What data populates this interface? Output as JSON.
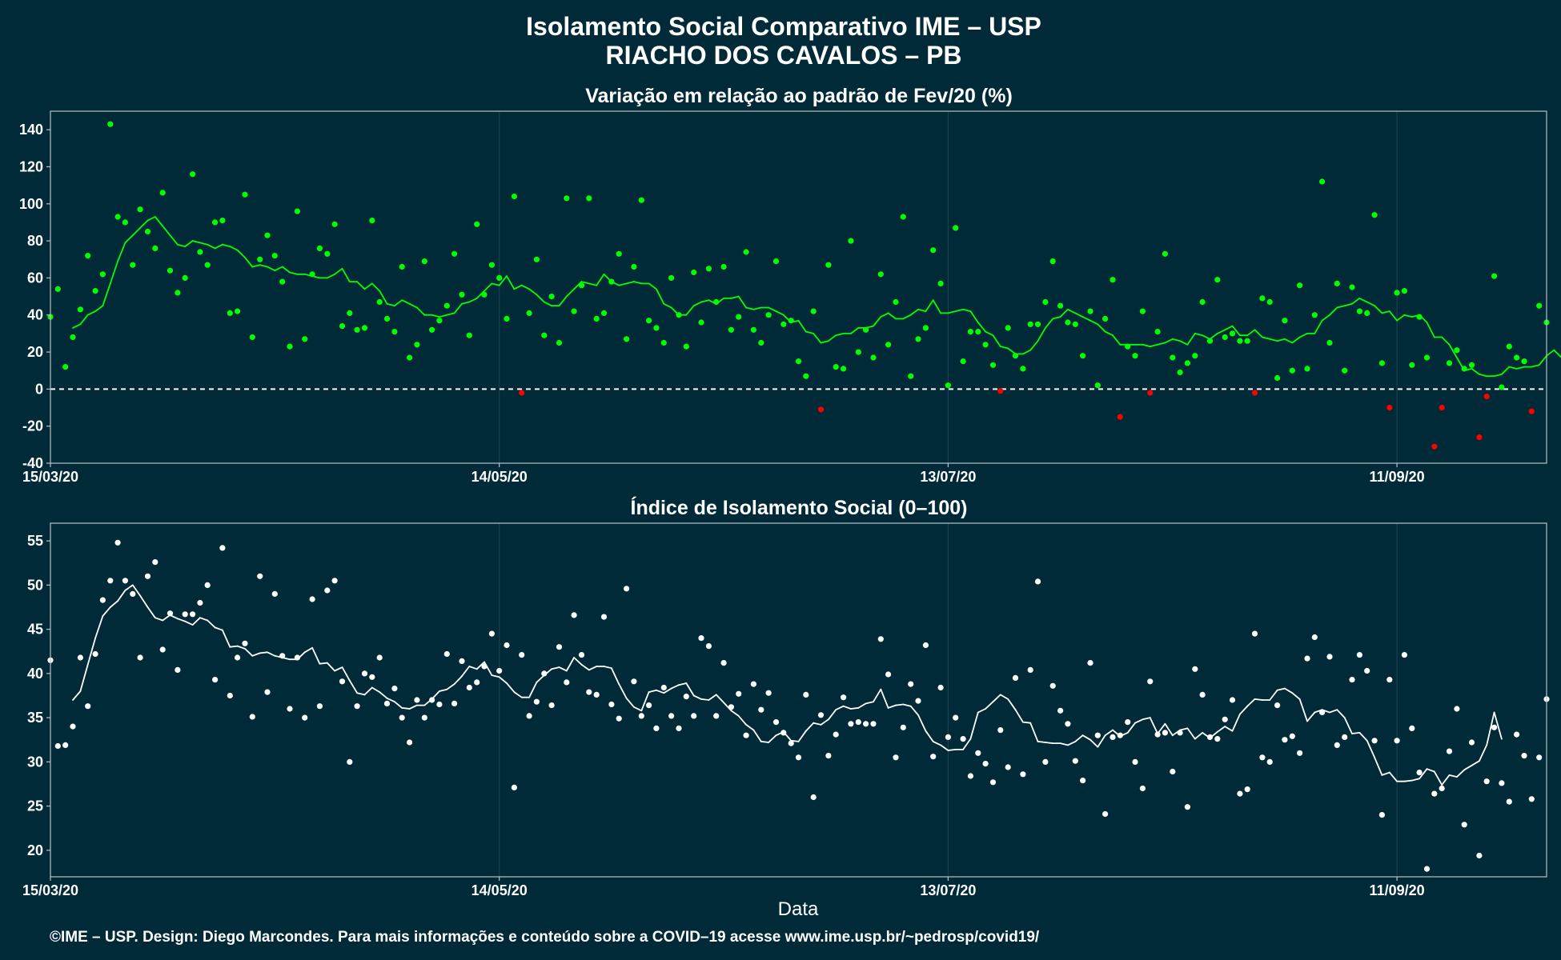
{
  "title": "Isolamento Social Comparativo IME – USP",
  "subtitle": "RIACHO DOS CAVALOS – PB",
  "footer": "©IME – USP. Design: Diego Marcondes. Para mais informações e conteúdo sobre a COVID–19 acesse www.ime.usp.br/~pedrosp/covid19/",
  "colors": {
    "background": "#002a38",
    "positive": "#00ff00",
    "negative": "#ff0000",
    "index": "#ffffff"
  },
  "chart_data": [
    {
      "type": "scatter",
      "title": "Variação em relação ao padrão de Fev/20 (%)",
      "xlabel": "",
      "x_range": [
        "2020-03-15",
        "2020-10-01"
      ],
      "xticks": [
        "15/03/20",
        "14/05/20",
        "13/07/20",
        "11/09/20"
      ],
      "ylim": [
        -40,
        150
      ],
      "yticks": [
        -40,
        -20,
        0,
        20,
        40,
        60,
        80,
        100,
        120,
        140
      ],
      "reference_line": 0,
      "grid": "vertical",
      "series": [
        {
          "kind": "points",
          "start": "2020-03-15",
          "values": [
            39,
            54,
            12,
            28,
            43,
            72,
            53,
            62,
            143,
            93,
            90,
            67,
            97,
            85,
            76,
            106,
            64,
            52,
            60,
            116,
            74,
            67,
            90,
            91,
            41,
            42,
            105,
            28,
            70,
            83,
            72,
            58,
            23,
            96,
            27,
            62,
            76,
            73,
            89,
            34,
            41,
            32,
            33,
            91,
            47,
            38,
            31,
            66,
            17,
            24,
            69,
            32,
            37,
            45,
            73,
            51,
            29,
            89,
            51,
            67,
            60,
            38,
            104,
            -2,
            41,
            70,
            29,
            50,
            25,
            103,
            42,
            56,
            103,
            38,
            41,
            58,
            73,
            27,
            66,
            102,
            37,
            33,
            25,
            60,
            40,
            23,
            63,
            36,
            65,
            47,
            66,
            32,
            39,
            74,
            32,
            25,
            40,
            69,
            35,
            37,
            15,
            7,
            42,
            -11,
            67,
            12,
            11,
            80,
            20,
            32,
            17,
            62,
            24,
            47,
            93,
            7,
            27,
            33,
            75,
            57,
            2,
            87,
            15,
            31,
            31,
            24,
            13,
            -1,
            33,
            18,
            11,
            35,
            35,
            47,
            69,
            45,
            36,
            35,
            18,
            42,
            2,
            38,
            59,
            -15,
            23,
            18,
            42,
            -2,
            31,
            73,
            17,
            9,
            14,
            18,
            47,
            26,
            59,
            28,
            30,
            26,
            26,
            -2,
            49,
            47,
            6,
            37,
            10,
            56,
            11,
            40,
            112,
            25,
            57,
            10,
            55,
            42,
            41,
            94,
            14,
            -10,
            52,
            53,
            13,
            39,
            17,
            -31,
            -10,
            14,
            21,
            11,
            13,
            -26,
            -4,
            61,
            1,
            23,
            17,
            15,
            -12,
            45,
            36
          ]
        },
        {
          "kind": "rolling-mean",
          "start": "2020-03-18",
          "values": [
            33,
            35,
            40,
            42,
            45,
            57,
            69,
            79,
            83,
            87,
            91,
            93,
            88,
            83,
            78,
            77,
            80,
            79,
            78,
            76,
            78,
            77,
            75,
            71,
            66,
            67,
            66,
            64,
            66,
            63,
            62,
            62,
            61,
            60,
            60,
            62,
            65,
            58,
            58,
            54,
            57,
            53,
            46,
            45,
            48,
            46,
            44,
            40,
            40,
            39,
            40,
            41,
            46,
            47,
            49,
            53,
            57,
            56,
            61,
            54,
            56,
            54,
            51,
            47,
            45,
            45,
            50,
            54,
            58,
            57,
            56,
            62,
            58,
            56,
            57,
            58,
            57,
            57,
            54,
            46,
            44,
            40,
            40,
            45,
            47,
            48,
            46,
            49,
            49,
            50,
            44,
            43,
            44,
            44,
            42,
            40,
            36,
            37,
            31,
            30,
            25,
            26,
            29,
            30,
            30,
            33,
            33,
            34,
            39,
            41,
            38,
            38,
            40,
            43,
            42,
            48,
            41,
            41,
            42,
            43,
            42,
            36,
            31,
            29,
            23,
            22,
            19,
            19,
            21,
            26,
            33,
            38,
            39,
            43,
            41,
            39,
            37,
            35,
            31,
            29,
            24,
            24,
            24,
            24,
            23,
            24,
            25,
            27,
            26,
            24,
            30,
            29,
            27,
            30,
            32,
            34,
            29,
            29,
            32,
            28,
            27,
            26,
            27,
            25,
            28,
            30,
            30,
            37,
            40,
            44,
            45,
            46,
            49,
            47,
            45,
            41,
            42,
            37,
            40,
            39,
            40,
            36,
            28,
            28,
            24,
            17,
            10,
            11,
            8,
            7,
            7,
            8,
            12,
            11,
            12,
            12,
            13,
            18,
            21,
            17
          ]
        }
      ]
    },
    {
      "type": "scatter",
      "title": "Índice de Isolamento Social (0–100)",
      "xlabel": "Data",
      "x_range": [
        "2020-03-15",
        "2020-10-01"
      ],
      "xticks": [
        "15/03/20",
        "14/05/20",
        "13/07/20",
        "11/09/20"
      ],
      "ylim": [
        17,
        57
      ],
      "yticks": [
        20,
        25,
        30,
        35,
        40,
        45,
        50,
        55
      ],
      "grid": "vertical",
      "series": [
        {
          "kind": "points",
          "start": "2020-03-15",
          "values": [
            41.5,
            31.8,
            31.9,
            34,
            41.8,
            36.3,
            42.2,
            48.3,
            50.5,
            54.8,
            50.5,
            49,
            41.8,
            51,
            52.6,
            42.7,
            46.8,
            40.4,
            46.7,
            46.7,
            48,
            50,
            39.3,
            54.2,
            37.5,
            41.8,
            43.4,
            35.1,
            51,
            37.9,
            49,
            42,
            36,
            41.8,
            35,
            48.4,
            36.3,
            49.4,
            50.5,
            39.1,
            30,
            36.3,
            40,
            39.6,
            41.8,
            36.6,
            38.3,
            35,
            32.2,
            37,
            35,
            37,
            36.5,
            42.2,
            36.6,
            41.4,
            38.4,
            39,
            40.8,
            44.5,
            40.3,
            43.2,
            27.1,
            42.1,
            35.2,
            36.8,
            40,
            36.4,
            43,
            39,
            46.6,
            42.1,
            37.9,
            37.6,
            46.4,
            36.5,
            34.9,
            49.6,
            39.1,
            35.2,
            36.4,
            33.8,
            38.4,
            35.2,
            33.8,
            37.4,
            35.2,
            44,
            43.1,
            35.2,
            41.2,
            36.2,
            37.7,
            33,
            38.8,
            35.9,
            37.8,
            34.5,
            33.3,
            32.1,
            30.5,
            37.6,
            26,
            35.3,
            30.7,
            33.1,
            37.3,
            34.3,
            34.5,
            34.3,
            34.3,
            43.9,
            39.9,
            30.5,
            33.9,
            38.8,
            36.9,
            43.2,
            30.6,
            38.4,
            32.8,
            35,
            32.6,
            28.4,
            31,
            29.8,
            27.7,
            33.6,
            29.4,
            39.5,
            28.6,
            40.4,
            50.4,
            30,
            38.6,
            35.8,
            34.3,
            30.1,
            27.9,
            41.2,
            33,
            24.1,
            32.8,
            33,
            34.5,
            30,
            27,
            39.1,
            33.1,
            33.3,
            28.9,
            33.3,
            24.9,
            40.5,
            37.6,
            32.8,
            32.6,
            34.8,
            37,
            26.4,
            26.9,
            44.5,
            30.5,
            30,
            36.4,
            32.5,
            32.9,
            31,
            41.7,
            44.1,
            35.6,
            41.9,
            31.9,
            32.8,
            39.3,
            42.1,
            40.3,
            32.4,
            24,
            39.3,
            32.4,
            42.1,
            33.8,
            28.8,
            17.9,
            26.4,
            27,
            31.2,
            36,
            22.9,
            32.2,
            19.4,
            27.8,
            33.9,
            27.6,
            25.5,
            33.1,
            30.7,
            25.8,
            30.5,
            37.1
          ]
        },
        {
          "kind": "rolling-mean",
          "start": "2020-03-18",
          "values": [
            37,
            38,
            41,
            44,
            46.5,
            47.5,
            48.2,
            49.4,
            50,
            48.8,
            47.5,
            46.3,
            46,
            46.6,
            46.2,
            45.9,
            45.5,
            46.3,
            46,
            45.2,
            44.9,
            43,
            43.1,
            42.8,
            42,
            42.3,
            42.4,
            42,
            41.8,
            41.6,
            41.6,
            42.4,
            42.9,
            41.1,
            41.2,
            40.3,
            40.7,
            39.2,
            37.8,
            37.6,
            38.4,
            37.9,
            37.2,
            36.8,
            36.1,
            36,
            36.4,
            36.4,
            37.1,
            38,
            38.2,
            38.8,
            39.7,
            40.8,
            40.5,
            41.3,
            39.8,
            39.6,
            38.9,
            37.9,
            37.3,
            37.3,
            39,
            39.8,
            40.5,
            40.7,
            40.3,
            41.8,
            41,
            40.4,
            40.8,
            40.8,
            40.6,
            38.8,
            37.2,
            36.2,
            35.8,
            37.9,
            38.1,
            37.8,
            38.3,
            38.7,
            38.9,
            37.5,
            37.1,
            37,
            37.6,
            36.7,
            35.8,
            35.2,
            34.2,
            33.6,
            32.3,
            32.2,
            33,
            33.4,
            32.4,
            32.3,
            33.5,
            34.4,
            34.2,
            34.8,
            35.9,
            36.3,
            36,
            36.1,
            36.6,
            36.8,
            38.2,
            36.1,
            36.4,
            36.5,
            36.3,
            35.3,
            33.5,
            32.3,
            31.9,
            31.3,
            31.4,
            31.4,
            32.6,
            35.6,
            36,
            36.8,
            37.6,
            37.1,
            35.9,
            34.5,
            34.4,
            32.3,
            32.2,
            32.1,
            32.1,
            31.9,
            32.3,
            33,
            32.5,
            31.7,
            33,
            33.6,
            32.9,
            33.3,
            34.4,
            34.8,
            35,
            33.2,
            34.3,
            33,
            33.6,
            33.8,
            32.6,
            33.3,
            32.7,
            33.4,
            34,
            33.5,
            35.4,
            36.3,
            37.1,
            37,
            37,
            38.1,
            38.3,
            37.8,
            37.1,
            34.6,
            35.6,
            35.9,
            35.6,
            35.9,
            35,
            33.2,
            33.3,
            32.4,
            30.5,
            28.5,
            28.8,
            27.8,
            27.8,
            27.9,
            28.1,
            29.2,
            28.9,
            27.4,
            28.5,
            28.3,
            29.1,
            29.6,
            30.1,
            31.9,
            35.6,
            32.6
          ]
        }
      ]
    }
  ]
}
